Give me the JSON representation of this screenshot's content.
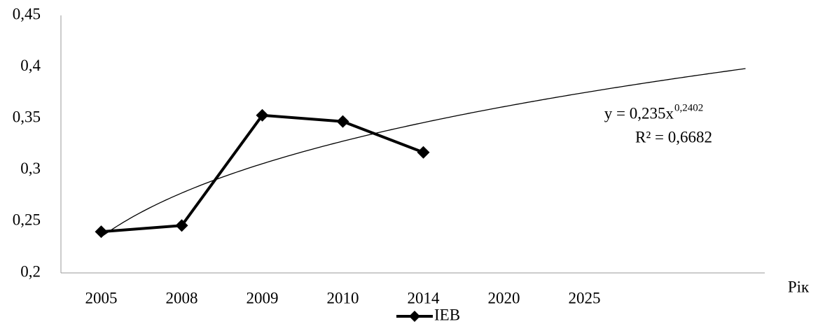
{
  "chart_data": {
    "type": "line",
    "categories": [
      "2005",
      "2008",
      "2009",
      "2010",
      "2014",
      "2020",
      "2025",
      null,
      null
    ],
    "series": [
      {
        "name": "IEB",
        "color": "#000000",
        "values": [
          0.24,
          0.246,
          0.353,
          0.347,
          0.317,
          null,
          null,
          null,
          null
        ]
      }
    ],
    "x_label": "Рік",
    "ylim": [
      0.2,
      0.45
    ],
    "yticks": [
      {
        "value": 0.2,
        "label": "0,2"
      },
      {
        "value": 0.25,
        "label": "0,25"
      },
      {
        "value": 0.3,
        "label": "0,3"
      },
      {
        "value": 0.35,
        "label": "0,35"
      },
      {
        "value": 0.4,
        "label": "0,4"
      },
      {
        "value": 0.45,
        "label": "0,45"
      }
    ],
    "grid": false,
    "legend": "bottom",
    "trendline": {
      "type": "power",
      "a": 0.235,
      "b": 0.2402,
      "equation_label": "y = 0,235x",
      "exponent_label": "0,2402",
      "r2_label": "R² = 0,6682"
    }
  }
}
